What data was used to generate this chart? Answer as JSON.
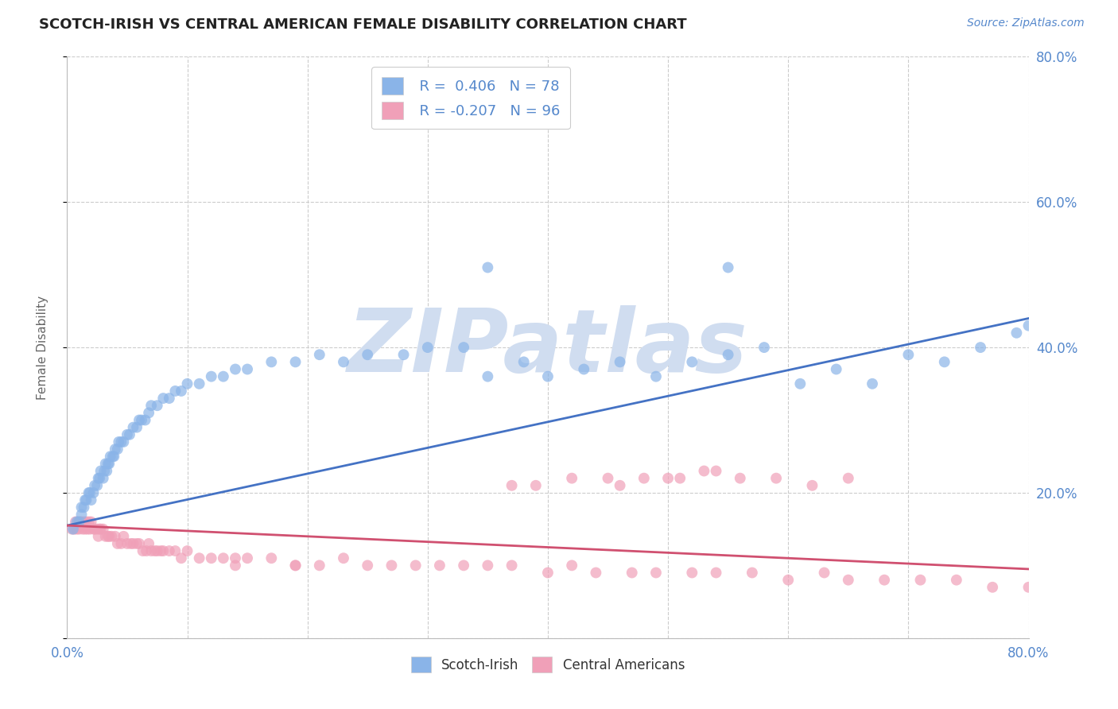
{
  "title": "SCOTCH-IRISH VS CENTRAL AMERICAN FEMALE DISABILITY CORRELATION CHART",
  "source": "Source: ZipAtlas.com",
  "ylabel": "Female Disability",
  "xlim": [
    0.0,
    0.8
  ],
  "ylim": [
    0.0,
    0.8
  ],
  "blue_color": "#4472c4",
  "blue_scatter": "#8ab4e8",
  "pink_color": "#d05070",
  "pink_scatter": "#f0a0b8",
  "watermark": "ZIPatlas",
  "watermark_color": "#d0ddf0",
  "axis_color": "#5588cc",
  "title_color": "#222222",
  "background_color": "#ffffff",
  "grid_color": "#cccccc",
  "legend_text_color": "#5588cc",
  "legend_R_color": "#000000",
  "blue_trend_x": [
    0.0,
    0.8
  ],
  "blue_trend_y": [
    0.155,
    0.44
  ],
  "pink_trend_x": [
    0.0,
    0.8
  ],
  "pink_trend_y": [
    0.155,
    0.095
  ],
  "blue_scatter_x": [
    0.005,
    0.008,
    0.01,
    0.012,
    0.012,
    0.014,
    0.015,
    0.016,
    0.018,
    0.019,
    0.02,
    0.022,
    0.023,
    0.025,
    0.026,
    0.027,
    0.028,
    0.03,
    0.031,
    0.032,
    0.033,
    0.034,
    0.035,
    0.036,
    0.038,
    0.039,
    0.04,
    0.042,
    0.043,
    0.045,
    0.047,
    0.05,
    0.052,
    0.055,
    0.058,
    0.06,
    0.062,
    0.065,
    0.068,
    0.07,
    0.075,
    0.08,
    0.085,
    0.09,
    0.095,
    0.1,
    0.11,
    0.12,
    0.13,
    0.14,
    0.15,
    0.17,
    0.19,
    0.21,
    0.23,
    0.25,
    0.28,
    0.3,
    0.33,
    0.35,
    0.38,
    0.4,
    0.43,
    0.46,
    0.49,
    0.52,
    0.55,
    0.58,
    0.61,
    0.64,
    0.67,
    0.7,
    0.73,
    0.76,
    0.79,
    0.8,
    0.55,
    0.35
  ],
  "blue_scatter_y": [
    0.15,
    0.16,
    0.16,
    0.17,
    0.18,
    0.18,
    0.19,
    0.19,
    0.2,
    0.2,
    0.19,
    0.2,
    0.21,
    0.21,
    0.22,
    0.22,
    0.23,
    0.22,
    0.23,
    0.24,
    0.23,
    0.24,
    0.24,
    0.25,
    0.25,
    0.25,
    0.26,
    0.26,
    0.27,
    0.27,
    0.27,
    0.28,
    0.28,
    0.29,
    0.29,
    0.3,
    0.3,
    0.3,
    0.31,
    0.32,
    0.32,
    0.33,
    0.33,
    0.34,
    0.34,
    0.35,
    0.35,
    0.36,
    0.36,
    0.37,
    0.37,
    0.38,
    0.38,
    0.39,
    0.38,
    0.39,
    0.39,
    0.4,
    0.4,
    0.36,
    0.38,
    0.36,
    0.37,
    0.38,
    0.36,
    0.38,
    0.39,
    0.4,
    0.35,
    0.37,
    0.35,
    0.39,
    0.38,
    0.4,
    0.42,
    0.43,
    0.51,
    0.51
  ],
  "pink_scatter_x": [
    0.004,
    0.006,
    0.007,
    0.008,
    0.009,
    0.01,
    0.011,
    0.012,
    0.013,
    0.014,
    0.015,
    0.016,
    0.017,
    0.018,
    0.019,
    0.02,
    0.022,
    0.023,
    0.025,
    0.026,
    0.027,
    0.028,
    0.03,
    0.032,
    0.034,
    0.035,
    0.037,
    0.04,
    0.042,
    0.045,
    0.047,
    0.05,
    0.053,
    0.055,
    0.058,
    0.06,
    0.063,
    0.066,
    0.068,
    0.07,
    0.073,
    0.075,
    0.078,
    0.08,
    0.085,
    0.09,
    0.095,
    0.1,
    0.11,
    0.12,
    0.13,
    0.14,
    0.15,
    0.17,
    0.19,
    0.21,
    0.23,
    0.25,
    0.27,
    0.29,
    0.31,
    0.33,
    0.35,
    0.37,
    0.4,
    0.42,
    0.44,
    0.47,
    0.49,
    0.52,
    0.54,
    0.57,
    0.6,
    0.63,
    0.65,
    0.68,
    0.71,
    0.74,
    0.77,
    0.8,
    0.45,
    0.48,
    0.51,
    0.54,
    0.42,
    0.37,
    0.39,
    0.46,
    0.5,
    0.53,
    0.56,
    0.59,
    0.62,
    0.65,
    0.14,
    0.19
  ],
  "pink_scatter_y": [
    0.15,
    0.15,
    0.16,
    0.15,
    0.16,
    0.15,
    0.16,
    0.16,
    0.15,
    0.16,
    0.15,
    0.16,
    0.15,
    0.16,
    0.15,
    0.16,
    0.15,
    0.15,
    0.15,
    0.14,
    0.15,
    0.15,
    0.15,
    0.14,
    0.14,
    0.14,
    0.14,
    0.14,
    0.13,
    0.13,
    0.14,
    0.13,
    0.13,
    0.13,
    0.13,
    0.13,
    0.12,
    0.12,
    0.13,
    0.12,
    0.12,
    0.12,
    0.12,
    0.12,
    0.12,
    0.12,
    0.11,
    0.12,
    0.11,
    0.11,
    0.11,
    0.11,
    0.11,
    0.11,
    0.1,
    0.1,
    0.11,
    0.1,
    0.1,
    0.1,
    0.1,
    0.1,
    0.1,
    0.1,
    0.09,
    0.1,
    0.09,
    0.09,
    0.09,
    0.09,
    0.09,
    0.09,
    0.08,
    0.09,
    0.08,
    0.08,
    0.08,
    0.08,
    0.07,
    0.07,
    0.22,
    0.22,
    0.22,
    0.23,
    0.22,
    0.21,
    0.21,
    0.21,
    0.22,
    0.23,
    0.22,
    0.22,
    0.21,
    0.22,
    0.1,
    0.1
  ]
}
